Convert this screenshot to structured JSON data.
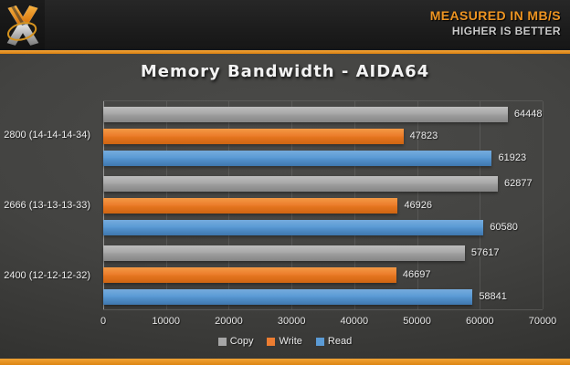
{
  "header": {
    "tagline_primary": "MEASURED IN MB/S",
    "tagline_secondary": "HIGHER IS BETTER"
  },
  "chart_data": {
    "type": "bar",
    "orientation": "horizontal",
    "title": "Memory Bandwidth - AIDA64",
    "categories": [
      "2800 (14-14-14-34)",
      "2666 (13-13-13-33)",
      "2400 (12-12-12-32)"
    ],
    "series": [
      {
        "name": "Copy",
        "color": "#A6A6A6",
        "values": [
          64448,
          62877,
          57617
        ]
      },
      {
        "name": "Write",
        "color": "#ED7D31",
        "values": [
          47823,
          46926,
          46697
        ]
      },
      {
        "name": "Read",
        "color": "#5B9BD5",
        "values": [
          61923,
          60580,
          58841
        ]
      }
    ],
    "xlim": [
      0,
      70000
    ],
    "x_ticks": [
      0,
      10000,
      20000,
      30000,
      40000,
      50000,
      60000,
      70000
    ],
    "grid": "vertical",
    "legend_position": "bottom"
  },
  "colors": {
    "accent_orange": "#E8941C",
    "header_background": "#1C1C1C",
    "chart_background": "#434341",
    "text_light": "#ECECEC"
  }
}
